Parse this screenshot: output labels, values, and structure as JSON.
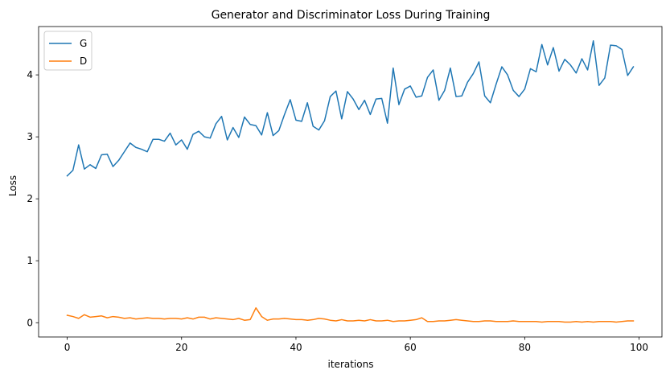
{
  "chart_data": {
    "type": "line",
    "title": "Generator and Discriminator Loss During Training",
    "xlabel": "iterations",
    "ylabel": "Loss",
    "xlim": [
      -5,
      104
    ],
    "ylim": [
      -0.23,
      4.78
    ],
    "xticks": [
      0,
      20,
      40,
      60,
      80,
      100
    ],
    "yticks": [
      0,
      1,
      2,
      3,
      4
    ],
    "grid": false,
    "legend": "top-left",
    "series": [
      {
        "name": "G",
        "color": "#1f77b4",
        "x": [
          0,
          1,
          2,
          3,
          4,
          5,
          6,
          7,
          8,
          9,
          10,
          11,
          12,
          13,
          14,
          15,
          16,
          17,
          18,
          19,
          20,
          21,
          22,
          23,
          24,
          25,
          26,
          27,
          28,
          29,
          30,
          31,
          32,
          33,
          34,
          35,
          36,
          37,
          38,
          39,
          40,
          41,
          42,
          43,
          44,
          45,
          46,
          47,
          48,
          49,
          50,
          51,
          52,
          53,
          54,
          55,
          56,
          57,
          58,
          59,
          60,
          61,
          62,
          63,
          64,
          65,
          66,
          67,
          68,
          69,
          70,
          71,
          72,
          73,
          74,
          75,
          76,
          77,
          78,
          79,
          80,
          81,
          82,
          83,
          84,
          85,
          86,
          87,
          88,
          89,
          90,
          91,
          92,
          93,
          94,
          95,
          96,
          97,
          98,
          99
        ],
        "values": [
          2.37,
          2.46,
          2.87,
          2.48,
          2.55,
          2.49,
          2.71,
          2.72,
          2.52,
          2.62,
          2.76,
          2.9,
          2.83,
          2.8,
          2.76,
          2.96,
          2.96,
          2.93,
          3.06,
          2.87,
          2.95,
          2.8,
          3.04,
          3.09,
          3.0,
          2.98,
          3.21,
          3.33,
          2.95,
          3.15,
          2.99,
          3.32,
          3.2,
          3.18,
          3.03,
          3.39,
          3.02,
          3.1,
          3.36,
          3.6,
          3.27,
          3.25,
          3.55,
          3.17,
          3.11,
          3.26,
          3.65,
          3.74,
          3.29,
          3.73,
          3.61,
          3.44,
          3.59,
          3.36,
          3.61,
          3.62,
          3.22,
          4.11,
          3.52,
          3.77,
          3.82,
          3.64,
          3.66,
          3.96,
          4.08,
          3.59,
          3.75,
          4.11,
          3.65,
          3.66,
          3.88,
          4.02,
          4.21,
          3.66,
          3.55,
          3.85,
          4.13,
          4.0,
          3.75,
          3.65,
          3.77,
          4.1,
          4.05,
          4.49,
          4.16,
          4.44,
          4.06,
          4.25,
          4.16,
          4.03,
          4.26,
          4.08,
          4.55,
          3.83,
          3.95,
          4.48,
          4.47,
          4.41,
          3.99,
          4.13
        ]
      },
      {
        "name": "D",
        "color": "#ff7f0e",
        "x": [
          0,
          1,
          2,
          3,
          4,
          5,
          6,
          7,
          8,
          9,
          10,
          11,
          12,
          13,
          14,
          15,
          16,
          17,
          18,
          19,
          20,
          21,
          22,
          23,
          24,
          25,
          26,
          27,
          28,
          29,
          30,
          31,
          32,
          33,
          34,
          35,
          36,
          37,
          38,
          39,
          40,
          41,
          42,
          43,
          44,
          45,
          46,
          47,
          48,
          49,
          50,
          51,
          52,
          53,
          54,
          55,
          56,
          57,
          58,
          59,
          60,
          61,
          62,
          63,
          64,
          65,
          66,
          67,
          68,
          69,
          70,
          71,
          72,
          73,
          74,
          75,
          76,
          77,
          78,
          79,
          80,
          81,
          82,
          83,
          84,
          85,
          86,
          87,
          88,
          89,
          90,
          91,
          92,
          93,
          94,
          95,
          96,
          97,
          98,
          99
        ],
        "values": [
          0.12,
          0.1,
          0.07,
          0.13,
          0.09,
          0.1,
          0.11,
          0.08,
          0.1,
          0.09,
          0.07,
          0.08,
          0.06,
          0.07,
          0.08,
          0.07,
          0.07,
          0.06,
          0.07,
          0.07,
          0.06,
          0.08,
          0.06,
          0.09,
          0.09,
          0.06,
          0.08,
          0.07,
          0.06,
          0.05,
          0.07,
          0.04,
          0.05,
          0.24,
          0.1,
          0.04,
          0.06,
          0.06,
          0.07,
          0.06,
          0.05,
          0.05,
          0.04,
          0.05,
          0.07,
          0.06,
          0.04,
          0.03,
          0.05,
          0.03,
          0.03,
          0.04,
          0.03,
          0.05,
          0.03,
          0.03,
          0.04,
          0.02,
          0.03,
          0.03,
          0.04,
          0.05,
          0.08,
          0.02,
          0.02,
          0.03,
          0.03,
          0.04,
          0.05,
          0.04,
          0.03,
          0.02,
          0.02,
          0.03,
          0.03,
          0.02,
          0.02,
          0.02,
          0.03,
          0.02,
          0.02,
          0.02,
          0.02,
          0.01,
          0.02,
          0.02,
          0.02,
          0.01,
          0.01,
          0.02,
          0.01,
          0.02,
          0.01,
          0.02,
          0.02,
          0.02,
          0.01,
          0.02,
          0.03,
          0.03
        ]
      }
    ]
  }
}
